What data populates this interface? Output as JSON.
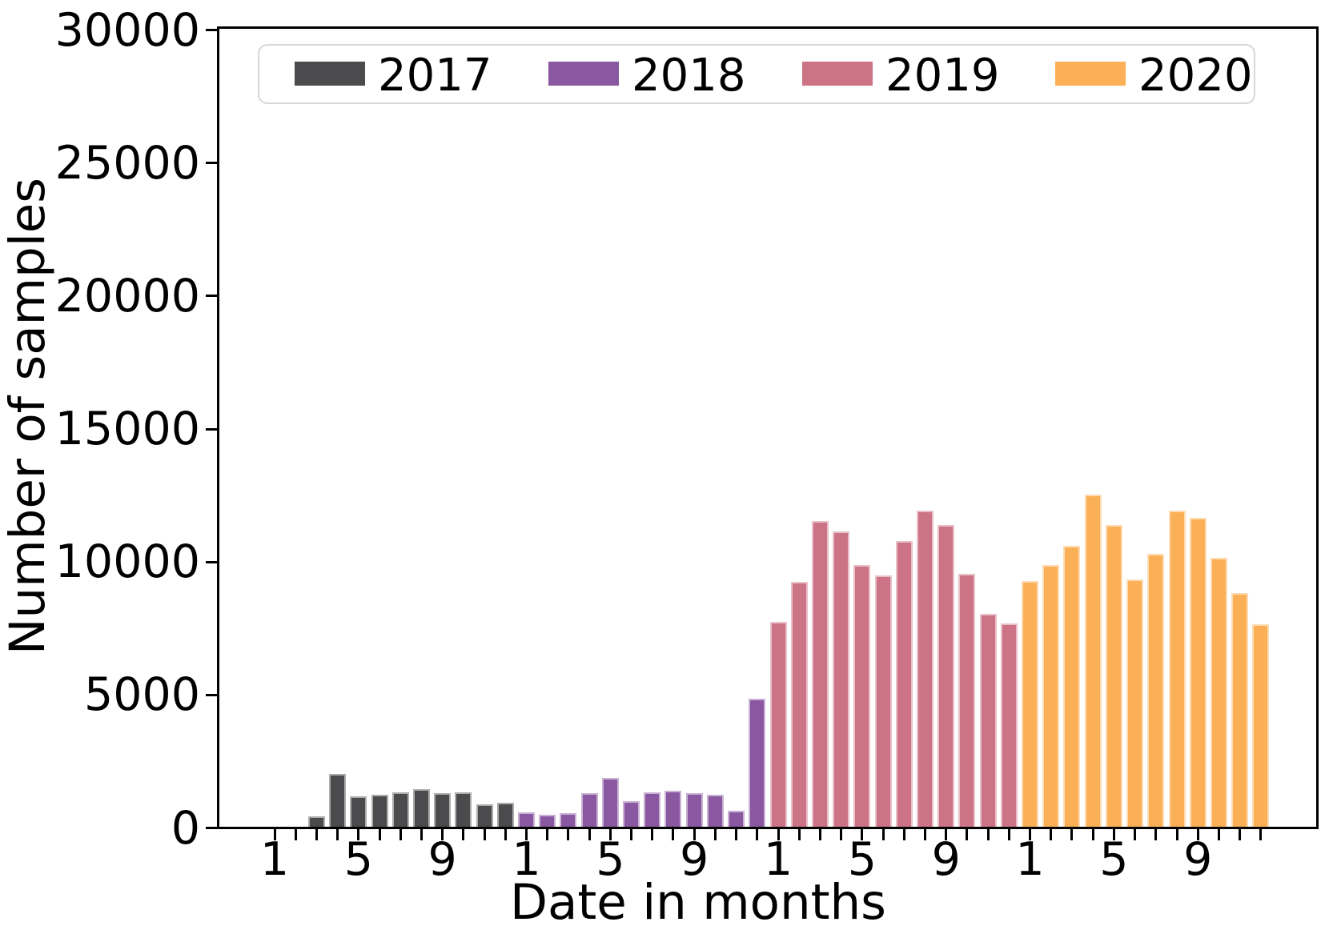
{
  "chart_data": {
    "type": "bar",
    "title": "",
    "xlabel": "Date in months",
    "ylabel": "Number of samples",
    "ylim": [
      0,
      30000
    ],
    "ytick_values": [
      0,
      5000,
      10000,
      15000,
      20000,
      25000,
      30000
    ],
    "ytick_labels": [
      "0",
      "5000",
      "10000",
      "15000",
      "20000",
      "25000",
      "30000"
    ],
    "xtick_labeled_months": [
      1,
      5,
      9
    ],
    "xtick_labels_per_year": [
      "1",
      "5",
      "9"
    ],
    "months_per_year": 12,
    "grid": false,
    "background": "#ffffff",
    "axis_color": "#000000",
    "legend": {
      "position": "upper center",
      "border_color": "#d8d8d8",
      "background": "#ffffff",
      "labels": [
        "2017",
        "2018",
        "2019",
        "2020"
      ]
    },
    "series": [
      {
        "name": "2017",
        "color": "#4b4b4d",
        "values": [
          0,
          0,
          400,
          2000,
          1150,
          1200,
          1300,
          1400,
          1250,
          1300,
          850,
          900
        ]
      },
      {
        "name": "2018",
        "color": "#8a58a0",
        "values": [
          550,
          450,
          500,
          1250,
          1850,
          950,
          1300,
          1350,
          1250,
          1200,
          600,
          4800
        ]
      },
      {
        "name": "2019",
        "color": "#cd7386",
        "values": [
          7700,
          9200,
          11500,
          11100,
          9850,
          9450,
          10750,
          11900,
          11350,
          9500,
          8000,
          7650
        ]
      },
      {
        "name": "2020",
        "color": "#fbb057",
        "values": [
          9250,
          9850,
          10550,
          12500,
          11350,
          9300,
          10250,
          11900,
          11600,
          10100,
          8800,
          7600
        ]
      }
    ]
  }
}
